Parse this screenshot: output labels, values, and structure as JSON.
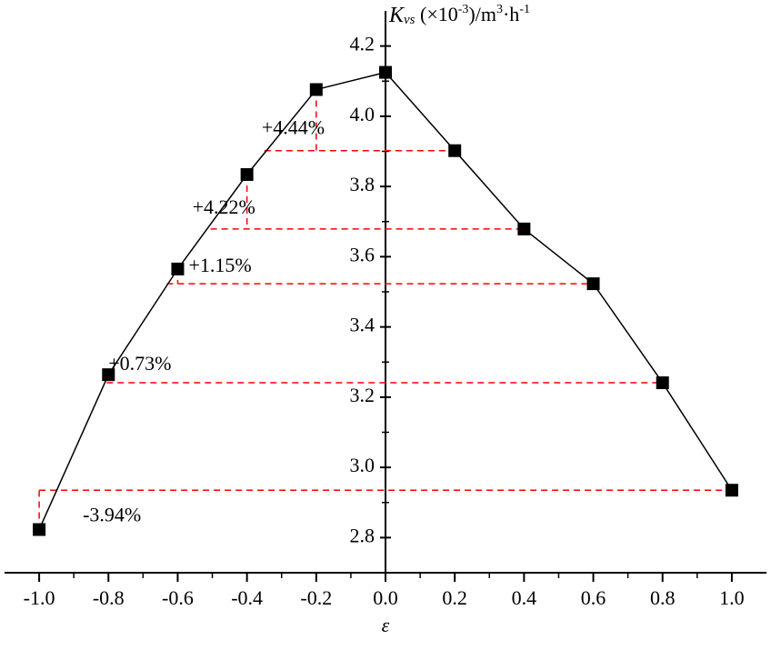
{
  "chart_data": {
    "type": "line",
    "y_label_parts": [
      "K",
      "vs",
      " (×10",
      "-3",
      ")/m",
      "3",
      "·h",
      "-1"
    ],
    "x_label": "ε",
    "x": [
      -1.0,
      -0.8,
      -0.6,
      -0.4,
      -0.2,
      0.0,
      0.2,
      0.4,
      0.6,
      0.8,
      1.0
    ],
    "series": [
      {
        "color": "#000000",
        "values": [
          2.823,
          3.264,
          3.565,
          3.834,
          4.076,
          4.125,
          3.902,
          3.679,
          3.523,
          3.241,
          2.935
        ]
      }
    ],
    "annotations": [
      "-3.94%",
      "+0.73%",
      "+1.15%",
      "+4.22%",
      "+4.44%"
    ],
    "guide_color": "#ff0000",
    "xlim": [
      -1.1,
      1.1
    ],
    "xticks": [
      {
        "value": -1.0,
        "label": "-1.0"
      },
      -0.8,
      -0.6,
      -0.4,
      -0.2,
      {
        "value": 0,
        "label": "0.0"
      },
      0.2,
      0.4,
      0.6,
      0.8,
      {
        "value": 1.0,
        "label": "1.0"
      }
    ],
    "ylim": [
      2.7,
      4.3
    ],
    "yticks": [
      2.8,
      {
        "value": 3.0,
        "label": "3.0"
      },
      3.2,
      3.4,
      3.6,
      3.8,
      {
        "value": 4.0,
        "label": "4.0"
      },
      4.2
    ],
    "grid": false
  }
}
